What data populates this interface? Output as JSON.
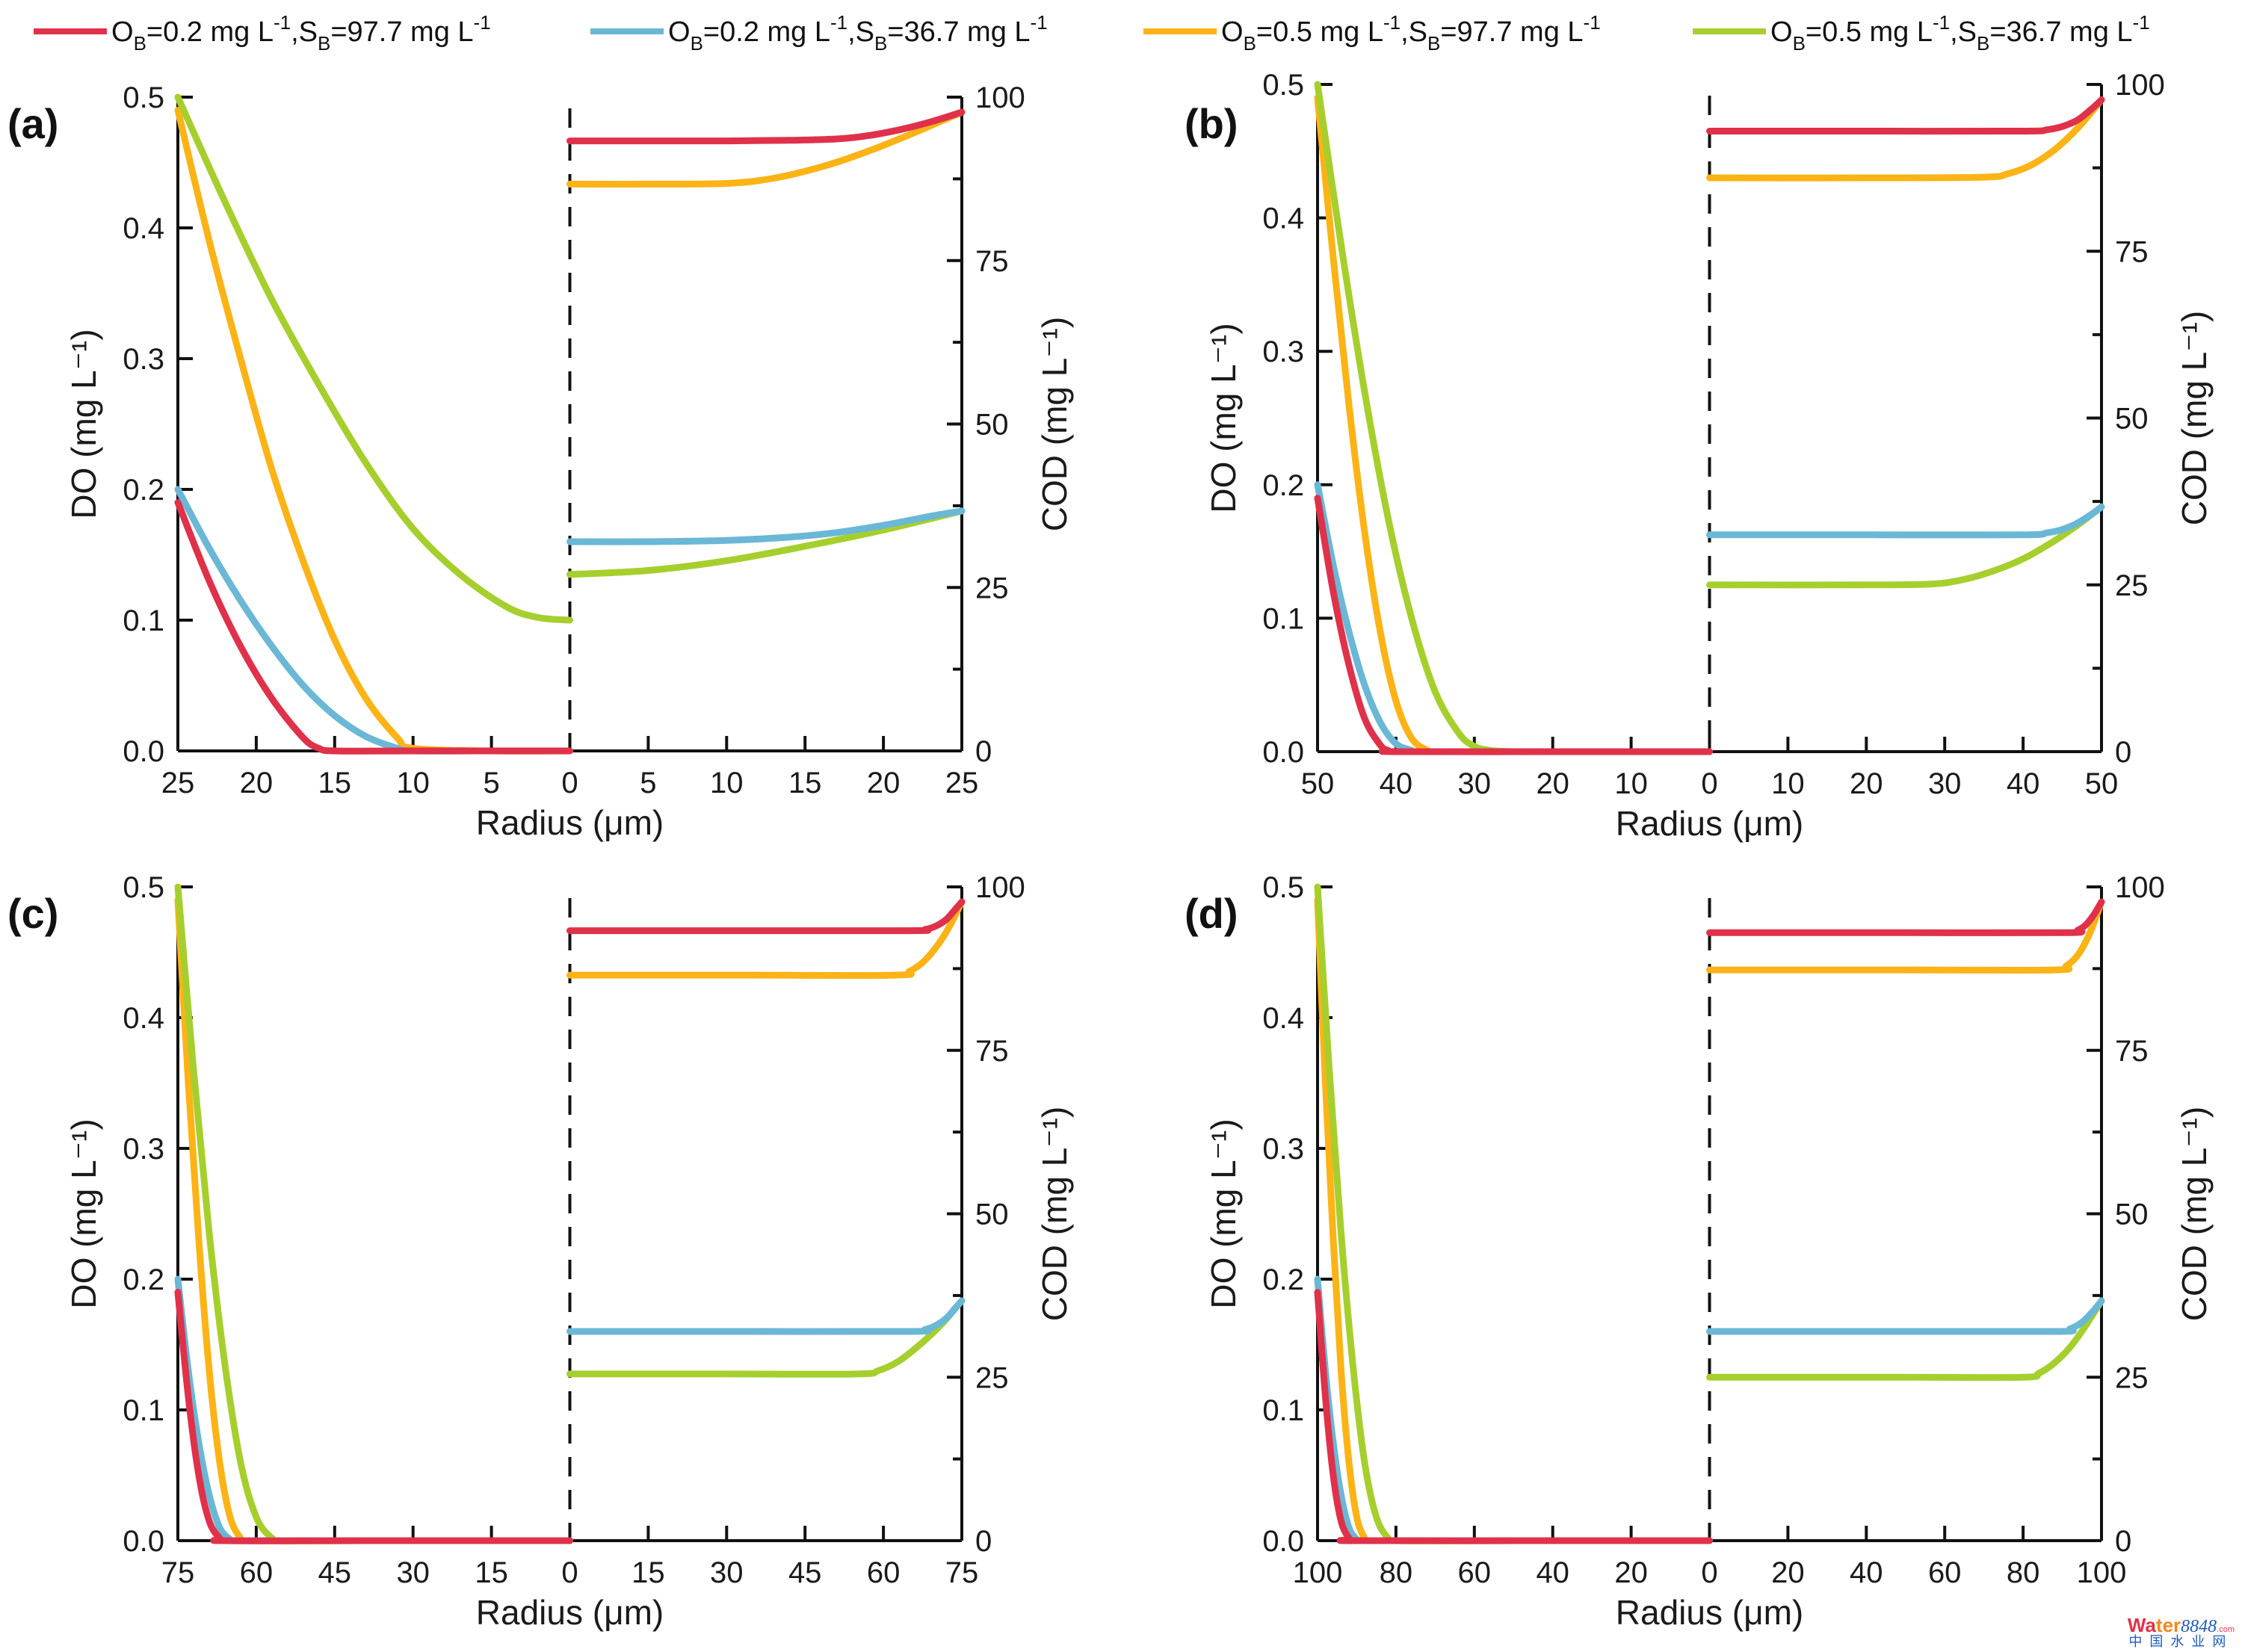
{
  "legend": [
    {
      "name": "OB=0.2, SB=97.7",
      "ob_prefix": "O",
      "ob_sub": "B",
      "ob_val": "=0.2 mg L",
      "ob_sup": "-1",
      "sb_prefix": ",S",
      "sb_sub": "B",
      "sb_val": "=97.7 mg L",
      "sb_sup": "-1",
      "color": "#e0314b"
    },
    {
      "name": "OB=0.2, SB=36.7",
      "ob_prefix": "O",
      "ob_sub": "B",
      "ob_val": "=0.2 mg L",
      "ob_sup": "-1",
      "sb_prefix": ",S",
      "sb_sub": "B",
      "sb_val": "=36.7 mg L",
      "sb_sup": "-1",
      "color": "#6bb7d6"
    },
    {
      "name": "OB=0.5, SB=97.7",
      "ob_prefix": "O",
      "ob_sub": "B",
      "ob_val": "=0.5 mg L",
      "ob_sup": "-1",
      "sb_prefix": ",S",
      "sb_sub": "B",
      "sb_val": "=97.7 mg L",
      "sb_sup": "-1",
      "color": "#fbb316"
    },
    {
      "name": "OB=0.5, SB=36.7",
      "ob_prefix": "O",
      "ob_sub": "B",
      "ob_val": "=0.5 mg L",
      "ob_sup": "-1",
      "sb_prefix": ",S",
      "sb_sub": "B",
      "sb_val": "=36.7 mg L",
      "sb_sup": "-1",
      "color": "#a6cf2e"
    }
  ],
  "watermark": {
    "main_a": "Wa",
    "main_b": "ter",
    "num": "8848",
    "dotcom": ".com",
    "sub": "中国水业网"
  },
  "chart_data": [
    {
      "type": "line",
      "panel": "(a)",
      "xlabel": "Radius (μm)",
      "ylabel_left": "DO (mg L⁻¹)",
      "ylabel_right": "COD (mg L⁻¹)",
      "radius_max": 25,
      "x_ticks_left": [
        "25",
        "20",
        "15",
        "10",
        "5",
        "0"
      ],
      "x_ticks_right": [
        "0",
        "5",
        "10",
        "15",
        "20",
        "25"
      ],
      "ylim_left": [
        0,
        0.5
      ],
      "y_ticks_left": [
        "0.0",
        "0.1",
        "0.2",
        "0.3",
        "0.4",
        "0.5"
      ],
      "ylim_right": [
        0,
        100
      ],
      "y_ticks_right": [
        "0",
        "25",
        "50",
        "75",
        "100"
      ],
      "divider": "dashed vertical line at radius 0",
      "do_series": [
        {
          "name": "OB=0.2, SB=97.7",
          "x": [
            25,
            23,
            21,
            19,
            17,
            16,
            15,
            10,
            5,
            0
          ],
          "y": [
            0.19,
            0.13,
            0.08,
            0.04,
            0.01,
            0.002,
            0,
            0,
            0,
            0
          ]
        },
        {
          "name": "OB=0.2, SB=36.7",
          "x": [
            25,
            23,
            21,
            19,
            17,
            15,
            13,
            11,
            10,
            5,
            0
          ],
          "y": [
            0.2,
            0.155,
            0.115,
            0.08,
            0.05,
            0.027,
            0.011,
            0.002,
            0,
            0,
            0
          ]
        },
        {
          "name": "OB=0.5, SB=97.7",
          "x": [
            25,
            23,
            21,
            19,
            17,
            15,
            13,
            11,
            10,
            5,
            0
          ],
          "y": [
            0.49,
            0.39,
            0.3,
            0.215,
            0.145,
            0.085,
            0.04,
            0.01,
            0.002,
            0,
            0
          ]
        },
        {
          "name": "OB=0.5, SB=36.7",
          "x": [
            25,
            22,
            19,
            16,
            13,
            10,
            7,
            4,
            2,
            0
          ],
          "y": [
            0.5,
            0.42,
            0.345,
            0.28,
            0.22,
            0.17,
            0.135,
            0.11,
            0.102,
            0.1
          ]
        }
      ],
      "cod_series": [
        {
          "name": "OB=0.2, SB=97.7",
          "x": [
            0,
            5,
            10,
            14,
            17,
            19,
            21,
            23,
            25
          ],
          "y": [
            93.3,
            93.3,
            93.3,
            93.4,
            93.6,
            94.1,
            95.0,
            96.2,
            97.7
          ]
        },
        {
          "name": "OB=0.2, SB=36.7",
          "x": [
            0,
            5,
            10,
            14,
            17,
            20,
            23,
            25
          ],
          "y": [
            32.0,
            32.0,
            32.2,
            32.7,
            33.4,
            34.5,
            35.9,
            36.7
          ]
        },
        {
          "name": "OB=0.5, SB=97.7",
          "x": [
            0,
            5,
            10,
            13,
            16,
            19,
            22,
            25
          ],
          "y": [
            86.7,
            86.7,
            86.8,
            87.6,
            89.3,
            91.7,
            94.6,
            97.7
          ]
        },
        {
          "name": "OB=0.5, SB=36.7",
          "x": [
            0,
            5,
            10,
            15,
            20,
            25
          ],
          "y": [
            27.0,
            27.6,
            29.1,
            31.3,
            33.8,
            36.7
          ]
        }
      ]
    },
    {
      "type": "line",
      "panel": "(b)",
      "xlabel": "Radius (μm)",
      "ylabel_left": "DO (mg L⁻¹)",
      "ylabel_right": "COD (mg L⁻¹)",
      "radius_max": 50,
      "x_ticks_left": [
        "50",
        "40",
        "30",
        "20",
        "10",
        "0"
      ],
      "x_ticks_right": [
        "0",
        "10",
        "20",
        "30",
        "40",
        "50"
      ],
      "ylim_left": [
        0,
        0.5
      ],
      "y_ticks_left": [
        "0.0",
        "0.1",
        "0.2",
        "0.3",
        "0.4",
        "0.5"
      ],
      "ylim_right": [
        0,
        100
      ],
      "y_ticks_right": [
        "0",
        "25",
        "50",
        "75",
        "100"
      ],
      "divider": "dashed vertical line at radius 0",
      "do_series": [
        {
          "name": "OB=0.2, SB=97.7",
          "x": [
            50,
            48,
            46,
            44,
            42,
            41,
            40,
            20,
            0
          ],
          "y": [
            0.19,
            0.12,
            0.065,
            0.025,
            0.005,
            0.001,
            0,
            0,
            0
          ]
        },
        {
          "name": "OB=0.2, SB=36.7",
          "x": [
            50,
            48,
            46,
            44,
            42,
            40,
            38,
            37,
            20,
            0
          ],
          "y": [
            0.2,
            0.14,
            0.09,
            0.05,
            0.022,
            0.006,
            0.001,
            0,
            0,
            0
          ]
        },
        {
          "name": "OB=0.5, SB=97.7",
          "x": [
            50,
            48,
            46,
            44,
            42,
            40,
            38,
            36,
            35,
            20,
            0
          ],
          "y": [
            0.49,
            0.37,
            0.26,
            0.165,
            0.09,
            0.038,
            0.01,
            0.001,
            0,
            0,
            0
          ]
        },
        {
          "name": "OB=0.5, SB=36.7",
          "x": [
            50,
            47,
            44,
            41,
            38,
            35,
            32,
            30,
            28,
            25,
            20,
            0
          ],
          "y": [
            0.5,
            0.38,
            0.27,
            0.175,
            0.1,
            0.045,
            0.014,
            0.004,
            0.001,
            0,
            0,
            0
          ]
        }
      ],
      "cod_series": [
        {
          "name": "OB=0.2, SB=97.7",
          "x": [
            0,
            20,
            40,
            43,
            45,
            47,
            49,
            50
          ],
          "y": [
            93.0,
            93.0,
            93.0,
            93.2,
            93.7,
            94.7,
            96.6,
            97.7
          ]
        },
        {
          "name": "OB=0.2, SB=36.7",
          "x": [
            0,
            20,
            40,
            43,
            45,
            47,
            49,
            50
          ],
          "y": [
            32.5,
            32.5,
            32.5,
            32.8,
            33.3,
            34.3,
            35.8,
            36.7
          ]
        },
        {
          "name": "OB=0.5, SB=97.7",
          "x": [
            0,
            20,
            35,
            38,
            41,
            44,
            47,
            50
          ],
          "y": [
            86.0,
            86.0,
            86.1,
            86.6,
            87.9,
            90.2,
            93.5,
            97.7
          ]
        },
        {
          "name": "OB=0.5, SB=36.7",
          "x": [
            0,
            20,
            28,
            32,
            36,
            40,
            44,
            47,
            50
          ],
          "y": [
            25.0,
            25.0,
            25.1,
            25.7,
            27.0,
            28.9,
            31.6,
            34.0,
            36.7
          ]
        }
      ]
    },
    {
      "type": "line",
      "panel": "(c)",
      "xlabel": "Radius (μm)",
      "ylabel_left": "DO (mg L⁻¹)",
      "ylabel_right": "COD (mg L⁻¹)",
      "radius_max": 75,
      "x_ticks_left": [
        "75",
        "60",
        "45",
        "30",
        "15",
        "0"
      ],
      "x_ticks_right": [
        "0",
        "15",
        "30",
        "45",
        "60",
        "75"
      ],
      "ylim_left": [
        0,
        0.5
      ],
      "y_ticks_left": [
        "0.0",
        "0.1",
        "0.2",
        "0.3",
        "0.4",
        "0.5"
      ],
      "ylim_right": [
        0,
        100
      ],
      "y_ticks_right": [
        "0",
        "25",
        "50",
        "75",
        "100"
      ],
      "divider": "dashed vertical line at radius 0",
      "do_series": [
        {
          "name": "OB=0.2, SB=97.7",
          "x": [
            75,
            73,
            71,
            69,
            67,
            66,
            40,
            0
          ],
          "y": [
            0.19,
            0.11,
            0.05,
            0.015,
            0.002,
            0,
            0,
            0
          ]
        },
        {
          "name": "OB=0.2, SB=36.7",
          "x": [
            75,
            73,
            71,
            69,
            67,
            65,
            64,
            40,
            0
          ],
          "y": [
            0.2,
            0.13,
            0.075,
            0.035,
            0.01,
            0.001,
            0,
            0,
            0
          ]
        },
        {
          "name": "OB=0.5, SB=97.7",
          "x": [
            75,
            73,
            71,
            69,
            67,
            65,
            63,
            62,
            40,
            0
          ],
          "y": [
            0.49,
            0.35,
            0.23,
            0.13,
            0.06,
            0.018,
            0.002,
            0,
            0,
            0
          ]
        },
        {
          "name": "OB=0.5, SB=36.7",
          "x": [
            75,
            72,
            69,
            66,
            63,
            60,
            57,
            55,
            40,
            0
          ],
          "y": [
            0.5,
            0.36,
            0.235,
            0.135,
            0.06,
            0.018,
            0.002,
            0,
            0,
            0
          ]
        }
      ],
      "cod_series": [
        {
          "name": "OB=0.2, SB=97.7",
          "x": [
            0,
            30,
            65,
            68,
            70,
            72,
            74,
            75
          ],
          "y": [
            93.3,
            93.3,
            93.3,
            93.5,
            94.0,
            95.0,
            96.8,
            97.7
          ]
        },
        {
          "name": "OB=0.2, SB=36.7",
          "x": [
            0,
            30,
            65,
            68,
            70,
            72,
            74,
            75
          ],
          "y": [
            32.0,
            32.0,
            32.0,
            32.3,
            32.9,
            34.0,
            35.8,
            36.7
          ]
        },
        {
          "name": "OB=0.5, SB=97.7",
          "x": [
            0,
            30,
            62,
            65,
            68,
            71,
            73,
            75
          ],
          "y": [
            86.5,
            86.5,
            86.5,
            87.1,
            88.8,
            91.8,
            94.5,
            97.7
          ]
        },
        {
          "name": "OB=0.5, SB=36.7",
          "x": [
            0,
            30,
            55,
            59,
            63,
            67,
            71,
            75
          ],
          "y": [
            25.5,
            25.5,
            25.5,
            26.0,
            27.5,
            30.0,
            33.0,
            36.7
          ]
        }
      ]
    },
    {
      "type": "line",
      "panel": "(d)",
      "xlabel": "Radius (μm)",
      "ylabel_left": "DO (mg L⁻¹)",
      "ylabel_right": "COD (mg L⁻¹)",
      "radius_max": 100,
      "x_ticks_left": [
        "100",
        "80",
        "60",
        "40",
        "20",
        "0"
      ],
      "x_ticks_right": [
        "0",
        "20",
        "40",
        "60",
        "80",
        "100"
      ],
      "ylim_left": [
        0,
        0.5
      ],
      "y_ticks_left": [
        "0.0",
        "0.1",
        "0.2",
        "0.3",
        "0.4",
        "0.5"
      ],
      "ylim_right": [
        0,
        100
      ],
      "y_ticks_right": [
        "0",
        "25",
        "50",
        "75",
        "100"
      ],
      "divider": "dashed vertical line at radius 0",
      "do_series": [
        {
          "name": "OB=0.2, SB=97.7",
          "x": [
            100,
            98,
            96,
            94,
            92,
            91,
            50,
            0
          ],
          "y": [
            0.19,
            0.11,
            0.05,
            0.015,
            0.002,
            0,
            0,
            0
          ]
        },
        {
          "name": "OB=0.2, SB=36.7",
          "x": [
            100,
            98,
            96,
            94,
            92,
            90,
            89,
            50,
            0
          ],
          "y": [
            0.2,
            0.13,
            0.075,
            0.035,
            0.01,
            0.001,
            0,
            0,
            0
          ]
        },
        {
          "name": "OB=0.5, SB=97.7",
          "x": [
            100,
            98,
            96,
            94,
            92,
            90,
            88,
            87,
            50,
            0
          ],
          "y": [
            0.49,
            0.35,
            0.23,
            0.13,
            0.06,
            0.018,
            0.002,
            0,
            0,
            0
          ]
        },
        {
          "name": "OB=0.5, SB=36.7",
          "x": [
            100,
            97,
            94,
            91,
            88,
            85,
            82,
            80,
            50,
            0
          ],
          "y": [
            0.5,
            0.36,
            0.235,
            0.135,
            0.06,
            0.018,
            0.002,
            0,
            0,
            0
          ]
        }
      ],
      "cod_series": [
        {
          "name": "OB=0.2, SB=97.7",
          "x": [
            0,
            50,
            91,
            94,
            96,
            98,
            100
          ],
          "y": [
            93.0,
            93.0,
            93.0,
            93.4,
            94.2,
            95.7,
            97.7
          ]
        },
        {
          "name": "OB=0.2, SB=36.7",
          "x": [
            0,
            50,
            89,
            92,
            95,
            98,
            100
          ],
          "y": [
            32.0,
            32.0,
            32.0,
            32.4,
            33.4,
            35.2,
            36.7
          ]
        },
        {
          "name": "OB=0.5, SB=97.7",
          "x": [
            0,
            50,
            88,
            91,
            94,
            97,
            100
          ],
          "y": [
            87.3,
            87.3,
            87.3,
            87.9,
            89.6,
            92.9,
            97.7
          ]
        },
        {
          "name": "OB=0.5, SB=36.7",
          "x": [
            0,
            50,
            80,
            84,
            88,
            92,
            96,
            100
          ],
          "y": [
            25.0,
            25.0,
            25.0,
            25.6,
            27.2,
            29.6,
            32.9,
            36.7
          ]
        }
      ]
    }
  ]
}
